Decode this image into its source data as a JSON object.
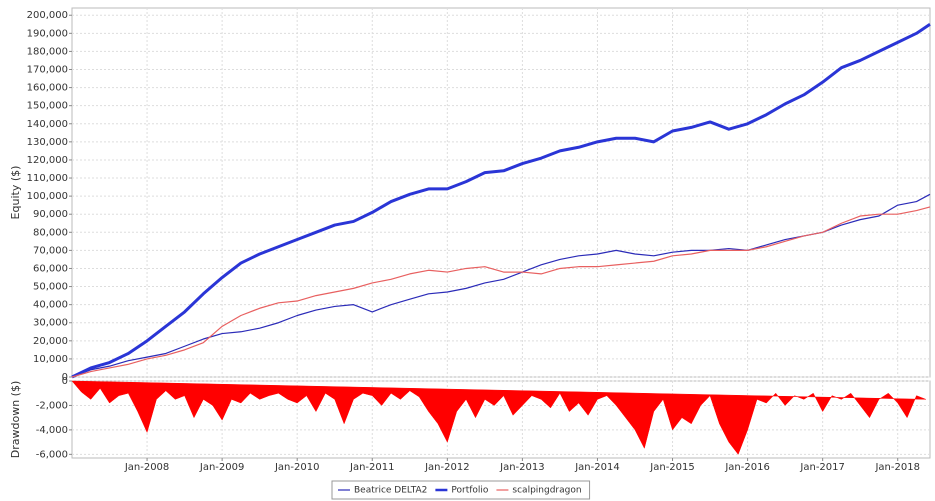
{
  "chart_data": [
    {
      "type": "line",
      "y_label": "Equity ($)",
      "x": [
        2007.0,
        2007.25,
        2007.5,
        2007.75,
        2008.0,
        2008.25,
        2008.5,
        2008.75,
        2009.0,
        2009.25,
        2009.5,
        2009.75,
        2010.0,
        2010.25,
        2010.5,
        2010.75,
        2011.0,
        2011.25,
        2011.5,
        2011.75,
        2012.0,
        2012.25,
        2012.5,
        2012.75,
        2013.0,
        2013.25,
        2013.5,
        2013.75,
        2014.0,
        2014.25,
        2014.5,
        2014.75,
        2015.0,
        2015.25,
        2015.5,
        2015.75,
        2016.0,
        2016.25,
        2016.5,
        2016.75,
        2017.0,
        2017.25,
        2017.5,
        2017.75,
        2018.0,
        2018.25,
        2018.43
      ],
      "series": [
        {
          "name": "Beatrice DELTA2",
          "color": "#2b2bb8",
          "line_width": 1.2,
          "values": [
            0,
            4000,
            6000,
            9000,
            11000,
            13000,
            17000,
            21000,
            24000,
            25000,
            27000,
            30000,
            34000,
            37000,
            39000,
            40000,
            36000,
            40000,
            43000,
            46000,
            47000,
            49000,
            52000,
            54000,
            58000,
            62000,
            65000,
            67000,
            68000,
            70000,
            68000,
            67000,
            69000,
            70000,
            70000,
            71000,
            70000,
            73000,
            76000,
            78000,
            80000,
            84000,
            87000,
            89000,
            95000,
            97000,
            101000
          ]
        },
        {
          "name": "Portfolio",
          "color": "#2a35d6",
          "line_width": 3,
          "values": [
            0,
            5000,
            8000,
            13000,
            20000,
            28000,
            36000,
            46000,
            55000,
            63000,
            68000,
            72000,
            76000,
            80000,
            84000,
            86000,
            91000,
            97000,
            101000,
            104000,
            104000,
            108000,
            113000,
            114000,
            118000,
            121000,
            125000,
            127000,
            130000,
            132000,
            132000,
            130000,
            136000,
            138000,
            141000,
            137000,
            140000,
            145000,
            151000,
            156000,
            163000,
            171000,
            175000,
            180000,
            185000,
            190000,
            195000
          ]
        },
        {
          "name": "scalpingdragon",
          "color": "#e86060",
          "line_width": 1.2,
          "values": [
            0,
            3000,
            5000,
            7000,
            10000,
            12000,
            15000,
            19000,
            28000,
            34000,
            38000,
            41000,
            42000,
            45000,
            47000,
            49000,
            52000,
            54000,
            57000,
            59000,
            58000,
            60000,
            61000,
            58000,
            58000,
            57000,
            60000,
            61000,
            61000,
            62000,
            63000,
            64000,
            67000,
            68000,
            70000,
            70000,
            70000,
            72000,
            75000,
            78000,
            80000,
            85000,
            89000,
            90000,
            90000,
            92000,
            94000
          ]
        }
      ],
      "xlim": [
        2007.0,
        2018.43
      ],
      "xticks": [
        2008,
        2009,
        2010,
        2011,
        2012,
        2013,
        2014,
        2015,
        2016,
        2017,
        2018
      ],
      "ylim": [
        0,
        204000
      ],
      "yticks": [
        0,
        {
          "value": 10000,
          "label": "10,000"
        },
        {
          "value": 20000,
          "label": "20,000"
        },
        {
          "value": 30000,
          "label": "30,000"
        },
        {
          "value": 40000,
          "label": "40,000"
        },
        {
          "value": 50000,
          "label": "50,000"
        },
        {
          "value": 60000,
          "label": "60,000"
        },
        {
          "value": 70000,
          "label": "70,000"
        },
        {
          "value": 80000,
          "label": "80,000"
        },
        {
          "value": 90000,
          "label": "90,000"
        },
        {
          "value": 100000,
          "label": "100,000"
        },
        {
          "value": 110000,
          "label": "110,000"
        },
        {
          "value": 120000,
          "label": "120,000"
        },
        {
          "value": 130000,
          "label": "130,000"
        },
        {
          "value": 140000,
          "label": "140,000"
        },
        {
          "value": 150000,
          "label": "150,000"
        },
        {
          "value": 160000,
          "label": "160,000"
        },
        {
          "value": 170000,
          "label": "170,000"
        },
        {
          "value": 180000,
          "label": "180,000"
        },
        {
          "value": 190000,
          "label": "190,000"
        },
        {
          "value": 200000,
          "label": "200,000"
        }
      ],
      "grid": true
    },
    {
      "type": "area",
      "y_label": "Drawdown ($)",
      "color": "#ff0000",
      "x": [
        2007.0,
        2007.125,
        2007.25,
        2007.375,
        2007.5,
        2007.625,
        2007.75,
        2007.875,
        2008.0,
        2008.125,
        2008.25,
        2008.375,
        2008.5,
        2008.625,
        2008.75,
        2008.875,
        2009.0,
        2009.125,
        2009.25,
        2009.375,
        2009.5,
        2009.625,
        2009.75,
        2009.875,
        2010.0,
        2010.125,
        2010.25,
        2010.375,
        2010.5,
        2010.625,
        2010.75,
        2010.875,
        2011.0,
        2011.125,
        2011.25,
        2011.375,
        2011.5,
        2011.625,
        2011.75,
        2011.875,
        2012.0,
        2012.125,
        2012.25,
        2012.375,
        2012.5,
        2012.625,
        2012.75,
        2012.875,
        2013.0,
        2013.125,
        2013.25,
        2013.375,
        2013.5,
        2013.625,
        2013.75,
        2013.875,
        2014.0,
        2014.125,
        2014.25,
        2014.375,
        2014.5,
        2014.625,
        2014.75,
        2014.875,
        2015.0,
        2015.125,
        2015.25,
        2015.375,
        2015.5,
        2015.625,
        2015.75,
        2015.875,
        2016.0,
        2016.125,
        2016.25,
        2016.375,
        2016.5,
        2016.625,
        2016.75,
        2016.875,
        2017.0,
        2017.125,
        2017.25,
        2017.375,
        2017.5,
        2017.625,
        2017.75,
        2017.875,
        2018.0,
        2018.125,
        2018.25,
        2018.375
      ],
      "values": [
        0,
        -900,
        -1500,
        -600,
        -1800,
        -1200,
        -1000,
        -2500,
        -4200,
        -1500,
        -800,
        -1500,
        -1200,
        -3000,
        -1500,
        -2000,
        -3200,
        -1500,
        -1800,
        -1000,
        -1500,
        -1200,
        -1000,
        -1500,
        -1800,
        -1200,
        -2500,
        -1000,
        -1500,
        -3500,
        -1500,
        -1000,
        -1200,
        -2000,
        -1000,
        -1500,
        -800,
        -1300,
        -2500,
        -3500,
        -5000,
        -2500,
        -1500,
        -3000,
        -1500,
        -2000,
        -1200,
        -2800,
        -2000,
        -1200,
        -1500,
        -2200,
        -1000,
        -2500,
        -1800,
        -2800,
        -1500,
        -1200,
        -2000,
        -3000,
        -4000,
        -5500,
        -2500,
        -1500,
        -4000,
        -3000,
        -3500,
        -2000,
        -1200,
        -3500,
        -5000,
        -6000,
        -4000,
        -1500,
        -1800,
        -1000,
        -2000,
        -1200,
        -1500,
        -1000,
        -2500,
        -1200,
        -1500,
        -1000,
        -2000,
        -3000,
        -1500,
        -1000,
        -1800,
        -3000,
        -1200,
        -1500
      ],
      "xlim": [
        2007.0,
        2018.43
      ],
      "xticks": [
        {
          "value": 2008,
          "label": "Jan-2008"
        },
        {
          "value": 2009,
          "label": "Jan-2009"
        },
        {
          "value": 2010,
          "label": "Jan-2010"
        },
        {
          "value": 2011,
          "label": "Jan-2011"
        },
        {
          "value": 2012,
          "label": "Jan-2012"
        },
        {
          "value": 2013,
          "label": "Jan-2013"
        },
        {
          "value": 2014,
          "label": "Jan-2014"
        },
        {
          "value": 2015,
          "label": "Jan-2015"
        },
        {
          "value": 2016,
          "label": "Jan-2016"
        },
        {
          "value": 2017,
          "label": "Jan-2017"
        },
        {
          "value": 2018,
          "label": "Jan-2018"
        }
      ],
      "ylim": [
        -6300,
        0
      ],
      "yticks": [
        {
          "value": -6000,
          "label": "-6,000"
        },
        {
          "value": -4000,
          "label": "-4,000"
        },
        {
          "value": -2000,
          "label": "-2,000"
        },
        0
      ],
      "grid": true
    }
  ]
}
